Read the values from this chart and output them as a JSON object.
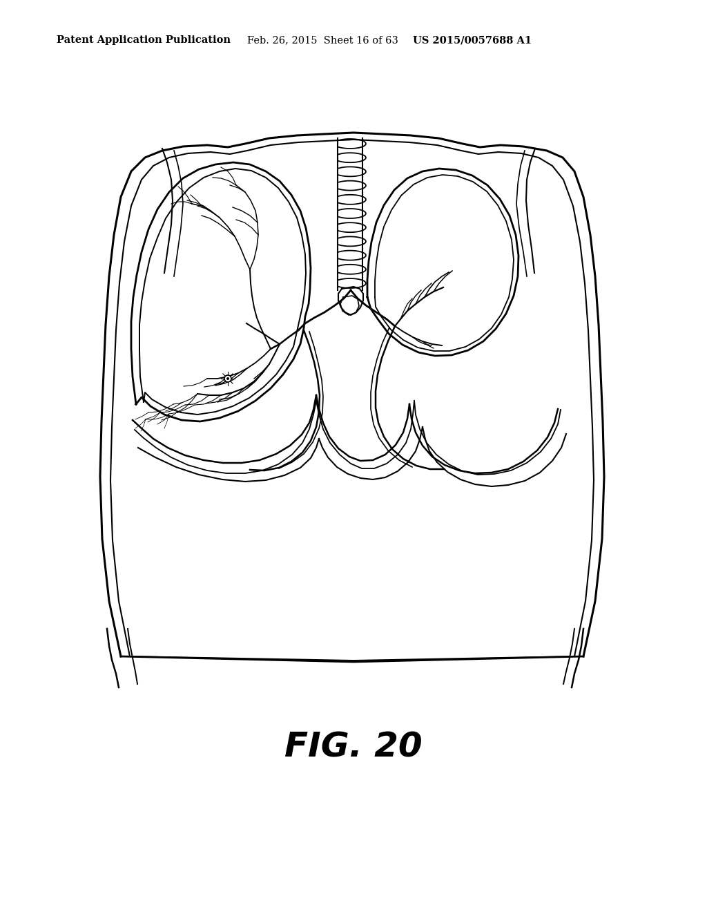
{
  "header_left": "Patent Application Publication",
  "header_middle": "Feb. 26, 2015  Sheet 16 of 63",
  "header_right": "US 2015/0057688 A1",
  "figure_label": "FIG. 20",
  "background_color": "#ffffff",
  "line_color": "#000000",
  "header_fontsize": 10.5,
  "figure_label_fontsize": 36,
  "fig_width": 10.24,
  "fig_height": 13.2,
  "dpi": 100
}
